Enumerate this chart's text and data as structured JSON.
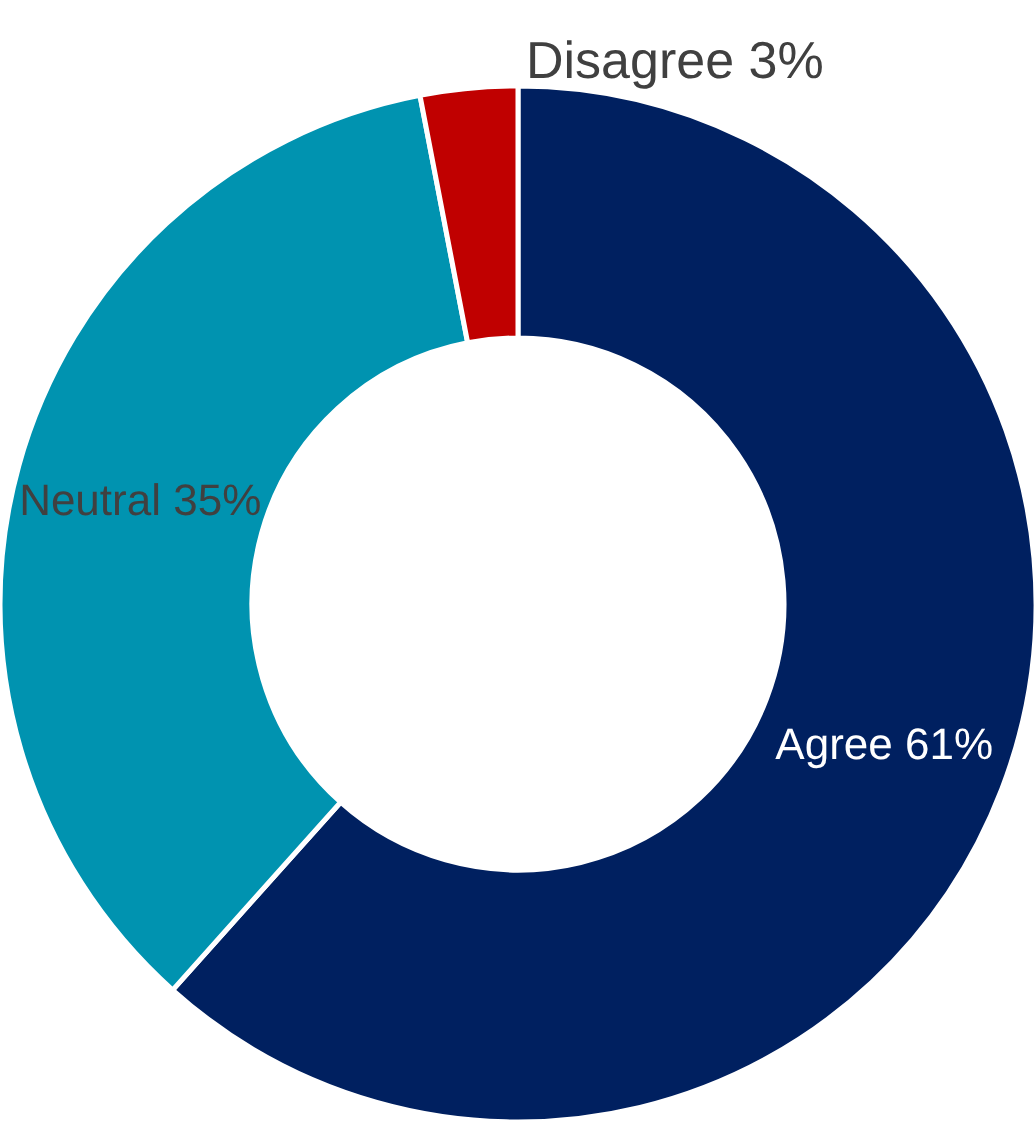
{
  "chart_data": {
    "type": "donut",
    "categories": [
      "Agree",
      "Neutral",
      "Disagree"
    ],
    "values": [
      61,
      35,
      3
    ],
    "value_labels": [
      "61%",
      "35%",
      "3%"
    ],
    "colors": [
      "#002060",
      "#0093b0",
      "#c00000"
    ]
  }
}
